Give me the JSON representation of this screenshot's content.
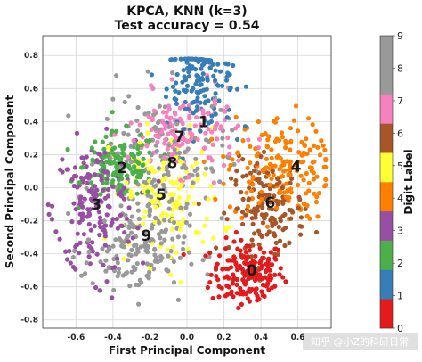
{
  "chart_data": {
    "type": "scatter",
    "title_line1": "KPCA, KNN (k=3)",
    "title_line2": "Test accuracy = 0.54",
    "xlabel": "First Principal Component",
    "ylabel": "Second Principal Component",
    "xlim": [
      -0.78,
      0.78
    ],
    "ylim": [
      -0.85,
      0.92
    ],
    "x_ticks": [
      -0.6,
      -0.4,
      -0.2,
      0.0,
      0.2,
      0.4,
      0.6
    ],
    "x_tick_labels": [
      "-0.6",
      "-0.4",
      "-0.2",
      "0.0",
      "0.2",
      "0.4",
      "0.6"
    ],
    "y_ticks": [
      -0.8,
      -0.6,
      -0.4,
      -0.2,
      0.0,
      0.2,
      0.4,
      0.6,
      0.8
    ],
    "y_tick_labels": [
      "-0.8",
      "-0.6",
      "-0.4",
      "-0.2",
      "0.0",
      "0.2",
      "0.4",
      "0.6",
      "0.8"
    ],
    "grid": true,
    "colorbar": {
      "label": "Digit Label",
      "ticks": [
        "0",
        "1",
        "2",
        "3",
        "4",
        "5",
        "6",
        "7",
        "8",
        "9"
      ],
      "colors": [
        "#e41a1c",
        "#377eb8",
        "#4daf4a",
        "#984ea3",
        "#ff7f00",
        "#ffff33",
        "#a65628",
        "#f781bf",
        "#999999",
        "#999999"
      ]
    },
    "clusters": [
      {
        "digit": "0",
        "label": "0",
        "color": "#e41a1c",
        "cx": 0.33,
        "cy": -0.52,
        "sx": 0.1,
        "sy": 0.1,
        "n": 180
      },
      {
        "digit": "1",
        "label": "1",
        "color": "#377eb8",
        "cx": 0.07,
        "cy": 0.65,
        "sx": 0.09,
        "sy": 0.14,
        "n": 150
      },
      {
        "digit": "2",
        "label": "2",
        "color": "#4daf4a",
        "cx": -0.36,
        "cy": 0.13,
        "sx": 0.1,
        "sy": 0.1,
        "n": 150
      },
      {
        "digit": "3",
        "label": "3",
        "color": "#984ea3",
        "cx": -0.5,
        "cy": -0.12,
        "sx": 0.11,
        "sy": 0.2,
        "n": 180
      },
      {
        "digit": "4",
        "label": "4",
        "color": "#ff7f00",
        "cx": 0.5,
        "cy": 0.12,
        "sx": 0.14,
        "sy": 0.16,
        "n": 180
      },
      {
        "digit": "5",
        "label": "5",
        "color": "#ffff33",
        "cx": -0.11,
        "cy": -0.05,
        "sx": 0.15,
        "sy": 0.2,
        "n": 150
      },
      {
        "digit": "6",
        "label": "6",
        "color": "#a65628",
        "cx": 0.44,
        "cy": -0.12,
        "sx": 0.1,
        "sy": 0.14,
        "n": 160
      },
      {
        "digit": "7",
        "label": "7",
        "color": "#f781bf",
        "cx": -0.02,
        "cy": 0.33,
        "sx": 0.15,
        "sy": 0.12,
        "n": 150
      },
      {
        "digit": "8",
        "label": "8",
        "color": "#999999",
        "cx": -0.13,
        "cy": 0.18,
        "sx": 0.17,
        "sy": 0.2,
        "n": 150
      },
      {
        "digit": "9",
        "label": "9",
        "color": "#999999",
        "cx": -0.28,
        "cy": -0.38,
        "sx": 0.14,
        "sy": 0.14,
        "n": 150
      }
    ],
    "annotations": [
      {
        "text": "0",
        "x": 0.35,
        "y": -0.5
      },
      {
        "text": "1",
        "x": 0.09,
        "y": 0.4
      },
      {
        "text": "2",
        "x": -0.35,
        "y": 0.12
      },
      {
        "text": "3",
        "x": -0.49,
        "y": -0.1
      },
      {
        "text": "4",
        "x": 0.59,
        "y": 0.13
      },
      {
        "text": "5",
        "x": -0.14,
        "y": -0.04
      },
      {
        "text": "6",
        "x": 0.45,
        "y": -0.09
      },
      {
        "text": "7",
        "x": -0.04,
        "y": 0.31
      },
      {
        "text": "8",
        "x": -0.08,
        "y": 0.15
      },
      {
        "text": "9",
        "x": -0.22,
        "y": -0.29
      }
    ]
  },
  "watermark": "知乎 @小Z的科研日常"
}
